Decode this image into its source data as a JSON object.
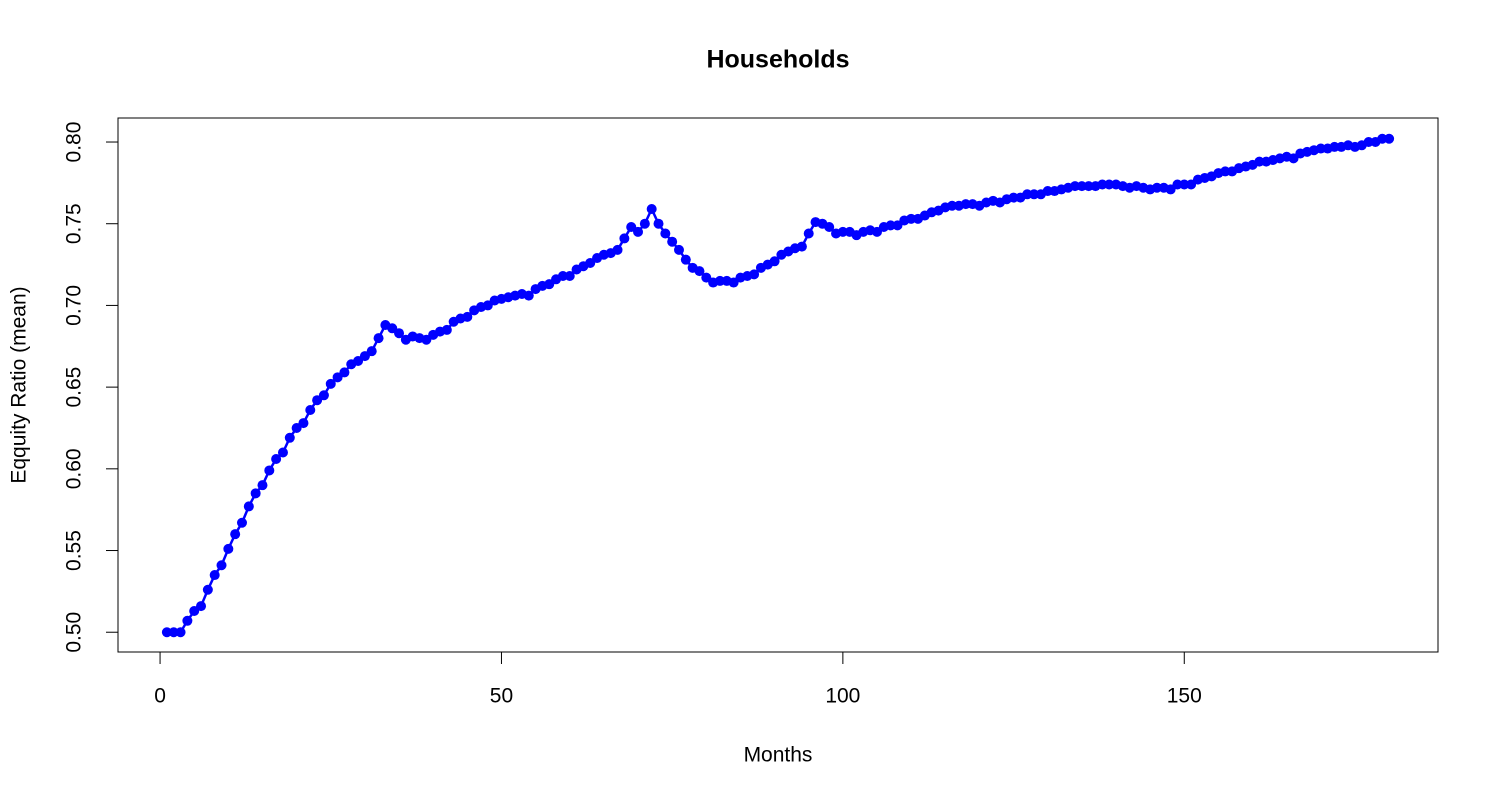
{
  "chart_data": {
    "type": "line",
    "title": "Households",
    "x_label": "Months",
    "y_label": "Eqquity Ratio (mean)",
    "x": [
      1,
      2,
      3,
      4,
      5,
      6,
      7,
      8,
      9,
      10,
      11,
      12,
      13,
      14,
      15,
      16,
      17,
      18,
      19,
      20,
      21,
      22,
      23,
      24,
      25,
      26,
      27,
      28,
      29,
      30,
      31,
      32,
      33,
      34,
      35,
      36,
      37,
      38,
      39,
      40,
      41,
      42,
      43,
      44,
      45,
      46,
      47,
      48,
      49,
      50,
      51,
      52,
      53,
      54,
      55,
      56,
      57,
      58,
      59,
      60,
      61,
      62,
      63,
      64,
      65,
      66,
      67,
      68,
      69,
      70,
      71,
      72,
      73,
      74,
      75,
      76,
      77,
      78,
      79,
      80,
      81,
      82,
      83,
      84,
      85,
      86,
      87,
      88,
      89,
      90,
      91,
      92,
      93,
      94,
      95,
      96,
      97,
      98,
      99,
      100,
      101,
      102,
      103,
      104,
      105,
      106,
      107,
      108,
      109,
      110,
      111,
      112,
      113,
      114,
      115,
      116,
      117,
      118,
      119,
      120,
      121,
      122,
      123,
      124,
      125,
      126,
      127,
      128,
      129,
      130,
      131,
      132,
      133,
      134,
      135,
      136,
      137,
      138,
      139,
      140,
      141,
      142,
      143,
      144,
      145,
      146,
      147,
      148,
      149,
      150,
      151,
      152,
      153,
      154,
      155,
      156,
      157,
      158,
      159,
      160,
      161,
      162,
      163,
      164,
      165,
      166,
      167,
      168,
      169,
      170,
      171,
      172,
      173,
      174,
      175,
      176,
      177,
      178,
      179,
      180
    ],
    "series": [
      {
        "color": "#0000ff",
        "values": [
          0.5,
          0.5,
          0.5,
          0.507,
          0.513,
          0.516,
          0.526,
          0.535,
          0.541,
          0.551,
          0.56,
          0.567,
          0.577,
          0.585,
          0.59,
          0.599,
          0.606,
          0.61,
          0.619,
          0.625,
          0.628,
          0.636,
          0.642,
          0.645,
          0.652,
          0.656,
          0.659,
          0.664,
          0.666,
          0.669,
          0.672,
          0.68,
          0.688,
          0.686,
          0.683,
          0.679,
          0.681,
          0.68,
          0.679,
          0.682,
          0.684,
          0.685,
          0.69,
          0.692,
          0.693,
          0.697,
          0.699,
          0.7,
          0.703,
          0.704,
          0.705,
          0.706,
          0.707,
          0.706,
          0.71,
          0.712,
          0.713,
          0.716,
          0.718,
          0.718,
          0.722,
          0.724,
          0.726,
          0.729,
          0.731,
          0.732,
          0.734,
          0.741,
          0.748,
          0.745,
          0.75,
          0.759,
          0.75,
          0.744,
          0.739,
          0.734,
          0.728,
          0.723,
          0.721,
          0.717,
          0.714,
          0.715,
          0.715,
          0.714,
          0.717,
          0.718,
          0.719,
          0.723,
          0.725,
          0.727,
          0.731,
          0.733,
          0.735,
          0.736,
          0.744,
          0.751,
          0.75,
          0.748,
          0.744,
          0.745,
          0.745,
          0.743,
          0.745,
          0.746,
          0.745,
          0.748,
          0.749,
          0.749,
          0.752,
          0.753,
          0.753,
          0.755,
          0.757,
          0.758,
          0.76,
          0.761,
          0.761,
          0.762,
          0.762,
          0.761,
          0.763,
          0.764,
          0.763,
          0.765,
          0.766,
          0.766,
          0.768,
          0.768,
          0.768,
          0.77,
          0.77,
          0.771,
          0.772,
          0.773,
          0.773,
          0.773,
          0.773,
          0.774,
          0.774,
          0.774,
          0.773,
          0.772,
          0.773,
          0.772,
          0.771,
          0.772,
          0.772,
          0.771,
          0.774,
          0.774,
          0.774,
          0.777,
          0.778,
          0.779,
          0.781,
          0.782,
          0.782,
          0.784,
          0.785,
          0.786,
          0.788,
          0.788,
          0.789,
          0.79,
          0.791,
          0.79,
          0.793,
          0.794,
          0.795,
          0.796,
          0.796,
          0.797,
          0.797,
          0.798,
          0.797,
          0.798,
          0.8,
          0.8,
          0.802,
          0.802
        ]
      }
    ],
    "xlim": [
      -6.16,
      187.16
    ],
    "ylim": [
      0.4879,
      0.8147
    ],
    "xticks": [
      0,
      50,
      100,
      150
    ],
    "yticks": [
      {
        "value": 0.5,
        "label": "0.50"
      },
      0.55,
      {
        "value": 0.6,
        "label": "0.60"
      },
      0.65,
      {
        "value": 0.7,
        "label": "0.70"
      },
      0.75,
      {
        "value": 0.8,
        "label": "0.80"
      }
    ]
  }
}
